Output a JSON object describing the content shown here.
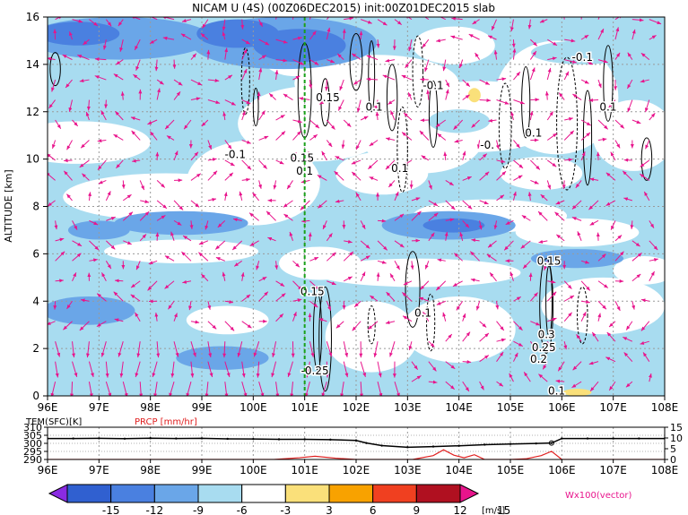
{
  "chart_data": [
    {
      "type": "heatmap",
      "title": "NICAM U (4S) (00Z06DEC2015) init:00Z01DEC2015 slab",
      "ylabel": "ALTITUDE [km]",
      "x_ticks": [
        "96E",
        "97E",
        "98E",
        "99E",
        "100E",
        "101E",
        "102E",
        "103E",
        "104E",
        "105E",
        "106E",
        "107E",
        "108E"
      ],
      "y_ticks": [
        "0",
        "2",
        "4",
        "6",
        "8",
        "10",
        "12",
        "14",
        "16"
      ],
      "xlim": [
        96,
        108
      ],
      "ylim": [
        0,
        16
      ],
      "grid": true,
      "marker_longitude": 101,
      "contour_labels": [
        {
          "text": "-0.1",
          "lon": 99.65,
          "alt": 10.2
        },
        {
          "text": "0.15",
          "lon": 100.95,
          "alt": 10.05
        },
        {
          "text": "0.1",
          "lon": 101.0,
          "alt": 9.5
        },
        {
          "text": "0.15",
          "lon": 101.45,
          "alt": 12.6
        },
        {
          "text": "0.1",
          "lon": 102.35,
          "alt": 12.2
        },
        {
          "text": "-0.1",
          "lon": 103.5,
          "alt": 13.1
        },
        {
          "text": "0.1",
          "lon": 102.85,
          "alt": 9.6
        },
        {
          "text": "-0.",
          "lon": 104.55,
          "alt": 10.6
        },
        {
          "text": "0.1",
          "lon": 105.45,
          "alt": 11.1
        },
        {
          "text": "-0.1",
          "lon": 106.4,
          "alt": 14.3
        },
        {
          "text": "0.1",
          "lon": 106.9,
          "alt": 12.2
        },
        {
          "text": "0.15",
          "lon": 101.15,
          "alt": 4.4
        },
        {
          "text": "-0.25",
          "lon": 101.2,
          "alt": 1.05
        },
        {
          "text": "0.1",
          "lon": 103.3,
          "alt": 3.5
        },
        {
          "text": "0.15",
          "lon": 105.75,
          "alt": 5.7
        },
        {
          "text": "0.3",
          "lon": 105.7,
          "alt": 2.6
        },
        {
          "text": "0.25",
          "lon": 105.65,
          "alt": 2.05
        },
        {
          "text": "0.2",
          "lon": 105.55,
          "alt": 1.55
        },
        {
          "text": "0.1",
          "lon": 105.9,
          "alt": 0.2
        }
      ],
      "colorbar": {
        "levels": [
          "-15",
          "-12",
          "-9",
          "-6",
          "-3",
          "3",
          "6",
          "9",
          "12",
          "15"
        ],
        "unit": "[m/s]",
        "colors": [
          "#8a2be2",
          "#3060d0",
          "#4a80e0",
          "#6aa6e8",
          "#a8dcf0",
          "#ffffff",
          "#fae07a",
          "#f8a200",
          "#f04020",
          "#b01020",
          "#e8148c"
        ]
      },
      "vector_label": "Wx100(vector)",
      "vector_color": "#e8148c"
    },
    {
      "type": "line",
      "legend": [
        "TEM(SFC)[K]",
        "PRCP [mm/hr]"
      ],
      "x_ticks": [
        "96E",
        "97E",
        "98E",
        "99E",
        "100E",
        "101E",
        "102E",
        "103E",
        "104E",
        "105E",
        "106E",
        "107E",
        "108E"
      ],
      "left_ticks": [
        "310",
        "305",
        "300",
        "295",
        "290"
      ],
      "right_ticks": [
        "15",
        "10",
        "5",
        "0"
      ],
      "xlim": [
        96,
        108
      ],
      "left_ylim": [
        290,
        310
      ],
      "right_ylim": [
        0,
        15
      ],
      "series": [
        {
          "name": "TEM(SFC)[K]",
          "color": "#000000",
          "x": [
            96,
            96.5,
            97,
            97.5,
            98,
            98.5,
            99,
            99.5,
            100,
            100.5,
            101,
            101.5,
            102,
            102.2,
            102.5,
            103,
            103.5,
            104,
            104.5,
            105,
            105.5,
            105.8,
            106,
            106.5,
            107,
            107.5,
            108
          ],
          "values": [
            303.0,
            303.0,
            303.1,
            302.9,
            303.2,
            303.0,
            303.1,
            302.8,
            302.7,
            302.5,
            302.5,
            302.3,
            301.8,
            300.2,
            298.6,
            297.6,
            298.0,
            298.5,
            299.2,
            299.6,
            299.9,
            300.2,
            303.0,
            303.0,
            303.0,
            303.0,
            303.0
          ]
        },
        {
          "name": "PRCP [mm/hr]",
          "color": "#e02020",
          "x": [
            96,
            100.4,
            100.9,
            101.2,
            101.6,
            102,
            102.6,
            103.1,
            103.5,
            103.7,
            103.9,
            104.1,
            104.3,
            104.5,
            105,
            105.3,
            105.6,
            105.8,
            106,
            108
          ],
          "values": [
            0,
            0,
            0.8,
            1.5,
            0.6,
            0,
            0,
            0,
            1.8,
            4.5,
            2,
            0.8,
            2.2,
            0,
            0,
            0.3,
            1.8,
            3.8,
            0,
            0
          ]
        }
      ]
    }
  ]
}
